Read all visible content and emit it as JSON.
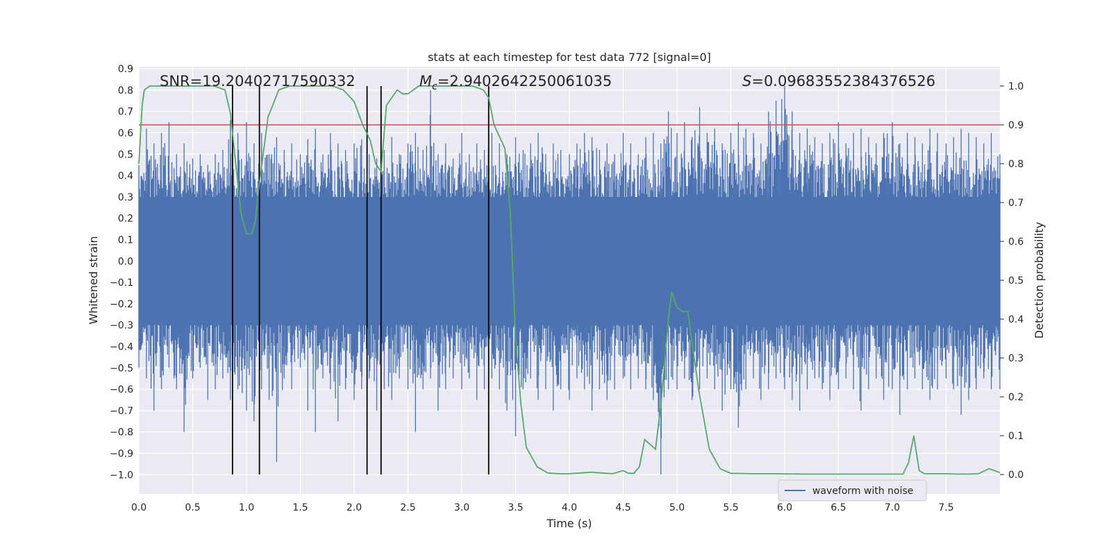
{
  "chart_data": {
    "type": "line",
    "title": "stats at each timestep for test data 772 [signal=0]",
    "xlabel": "Time (s)",
    "ylabel": "Whitened strain",
    "y2label": "Detection probability",
    "xlim": [
      0.0,
      8.0
    ],
    "ylim": [
      -1.09,
      0.91
    ],
    "y2lim": [
      -0.05,
      1.05
    ],
    "xticks": [
      "0.0",
      "0.5",
      "1.0",
      "1.5",
      "2.0",
      "2.5",
      "3.0",
      "3.5",
      "4.0",
      "4.5",
      "5.0",
      "5.5",
      "6.0",
      "6.5",
      "7.0",
      "7.5"
    ],
    "yticks": [
      "0.9",
      "0.8",
      "0.7",
      "0.6",
      "0.5",
      "0.4",
      "0.3",
      "0.2",
      "0.1",
      "0.0",
      "−0.1",
      "−0.2",
      "−0.3",
      "−0.4",
      "−0.5",
      "−0.6",
      "−0.7",
      "−0.8",
      "−0.9",
      "−1.0"
    ],
    "y2ticks": [
      "1.0",
      "0.9",
      "0.8",
      "0.7",
      "0.6",
      "0.5",
      "0.4",
      "0.3",
      "0.2",
      "0.1",
      "0.0"
    ],
    "grid": true,
    "legend_placement": "lower-right",
    "annotations": {
      "snr": "SNR=19.20402717590332",
      "mc_symbol": "M",
      "mc_sub": "c",
      "mc_value": "=2.9402642250061035",
      "s_symbol": "S",
      "s_value": "=0.09683552384376526"
    },
    "threshold": 0.9,
    "vertical_lines": [
      0.87,
      1.12,
      2.12,
      2.25,
      3.25
    ],
    "series": [
      {
        "name": "waveform with noise",
        "color": "#4c72b0",
        "envelope_x": [
          0.0,
          0.07,
          0.14,
          0.21,
          0.28,
          0.35,
          0.42,
          0.5,
          0.57,
          0.64,
          0.71,
          0.78,
          0.85,
          0.92,
          1.0,
          1.07,
          1.14,
          1.21,
          1.28,
          1.35,
          1.42,
          1.5,
          1.57,
          1.64,
          1.71,
          1.78,
          1.85,
          1.92,
          2.0,
          2.07,
          2.14,
          2.21,
          2.28,
          2.35,
          2.42,
          2.5,
          2.57,
          2.64,
          2.71,
          2.78,
          2.85,
          2.92,
          3.0,
          3.07,
          3.14,
          3.21,
          3.28,
          3.35,
          3.42,
          3.5,
          3.57,
          3.64,
          3.71,
          3.78,
          3.85,
          3.92,
          4.0,
          4.07,
          4.14,
          4.21,
          4.28,
          4.35,
          4.42,
          4.5,
          4.57,
          4.64,
          4.71,
          4.78,
          4.85,
          4.92,
          5.0,
          5.07,
          5.14,
          5.21,
          5.28,
          5.35,
          5.42,
          5.5,
          5.57,
          5.64,
          5.71,
          5.78,
          5.85,
          5.92,
          6.0,
          6.07,
          6.14,
          6.21,
          6.28,
          6.35,
          6.42,
          6.5,
          6.57,
          6.64,
          6.71,
          6.78,
          6.85,
          6.92,
          7.0,
          7.07,
          7.14,
          7.21,
          7.28,
          7.35,
          7.42,
          7.5,
          7.57,
          7.64,
          7.71,
          7.78,
          7.85,
          7.92,
          8.0
        ],
        "envelope_top": [
          0.45,
          0.62,
          0.55,
          0.6,
          0.65,
          0.5,
          0.55,
          0.48,
          0.5,
          0.45,
          0.5,
          0.52,
          0.66,
          0.6,
          0.65,
          0.55,
          0.6,
          0.5,
          0.58,
          0.52,
          0.55,
          0.5,
          0.57,
          0.62,
          0.5,
          0.6,
          0.55,
          0.52,
          0.55,
          0.57,
          0.5,
          0.48,
          0.52,
          0.58,
          0.5,
          0.55,
          0.6,
          0.52,
          0.8,
          0.5,
          0.55,
          0.48,
          0.6,
          0.5,
          0.55,
          0.52,
          0.6,
          0.55,
          0.5,
          0.58,
          0.52,
          0.55,
          0.6,
          0.5,
          0.55,
          0.52,
          0.5,
          0.55,
          0.6,
          0.58,
          0.52,
          0.55,
          0.5,
          0.6,
          0.55,
          0.5,
          0.58,
          0.6,
          0.55,
          0.7,
          0.6,
          0.65,
          0.58,
          0.72,
          0.6,
          0.62,
          0.55,
          0.6,
          0.65,
          0.62,
          0.6,
          0.55,
          0.7,
          0.75,
          0.82,
          0.7,
          0.6,
          0.62,
          0.58,
          0.55,
          0.6,
          0.65,
          0.55,
          0.6,
          0.62,
          0.58,
          0.55,
          0.6,
          0.65,
          0.55,
          0.6,
          0.58,
          0.55,
          0.62,
          0.6,
          0.55,
          0.58,
          0.62,
          0.6,
          0.58,
          0.55,
          0.6,
          0.5,
          0.5,
          0.47
        ],
        "envelope_bottom": [
          -0.5,
          -0.55,
          -0.7,
          -0.6,
          -0.5,
          -0.6,
          -0.8,
          -0.55,
          -0.5,
          -0.65,
          -0.6,
          -0.55,
          -0.65,
          -0.6,
          -0.7,
          -0.75,
          -0.6,
          -0.65,
          -0.94,
          -0.55,
          -0.6,
          -0.5,
          -0.7,
          -0.8,
          -0.55,
          -0.6,
          -0.75,
          -0.6,
          -0.65,
          -0.6,
          -0.55,
          -0.7,
          -0.6,
          -0.65,
          -0.55,
          -0.6,
          -0.8,
          -0.6,
          -0.55,
          -0.7,
          -0.6,
          -0.55,
          -0.6,
          -0.55,
          -0.65,
          -0.6,
          -0.55,
          -0.6,
          -0.7,
          -0.82,
          -0.6,
          -0.55,
          -0.65,
          -0.6,
          -0.7,
          -0.6,
          -0.65,
          -0.55,
          -0.6,
          -0.7,
          -0.6,
          -0.65,
          -0.6,
          -0.55,
          -0.6,
          -0.55,
          -0.6,
          -0.65,
          -1.0,
          -0.6,
          -0.6,
          -0.55,
          -0.65,
          -0.6,
          -0.55,
          -0.6,
          -0.7,
          -0.6,
          -0.78,
          -0.6,
          -0.55,
          -0.65,
          -0.6,
          -0.55,
          -0.6,
          -0.65,
          -0.7,
          -0.6,
          -0.55,
          -0.6,
          -0.65,
          -0.6,
          -0.55,
          -0.6,
          -0.7,
          -0.6,
          -0.55,
          -0.65,
          -0.6,
          -0.72,
          -0.6,
          -0.55,
          -0.6,
          -0.65,
          -0.6,
          -0.55,
          -0.6,
          -0.72,
          -0.65,
          -0.6,
          -0.55,
          -0.6,
          -0.6,
          -0.55,
          -0.5
        ]
      },
      {
        "name": "detection probability",
        "color": "#55a868",
        "axis": "right",
        "x": [
          0.0,
          0.03,
          0.05,
          0.1,
          0.15,
          0.2,
          0.3,
          0.45,
          0.6,
          0.7,
          0.8,
          0.85,
          0.9,
          0.95,
          1.0,
          1.05,
          1.08,
          1.12,
          1.2,
          1.3,
          1.4,
          1.5,
          1.6,
          1.7,
          1.8,
          1.9,
          2.0,
          2.08,
          2.15,
          2.2,
          2.25,
          2.3,
          2.4,
          2.45,
          2.5,
          2.55,
          2.6,
          2.7,
          2.8,
          2.9,
          3.0,
          3.1,
          3.2,
          3.25,
          3.3,
          3.4,
          3.45,
          3.5,
          3.55,
          3.6,
          3.7,
          3.8,
          3.9,
          4.0,
          4.1,
          4.2,
          4.3,
          4.4,
          4.5,
          4.55,
          4.6,
          4.65,
          4.7,
          4.8,
          4.85,
          4.92,
          4.95,
          5.0,
          5.05,
          5.1,
          5.2,
          5.3,
          5.4,
          5.5,
          5.7,
          5.9,
          6.2,
          6.5,
          6.8,
          7.0,
          7.1,
          7.15,
          7.2,
          7.25,
          7.3,
          7.4,
          7.5,
          7.6,
          7.7,
          7.8,
          7.9,
          8.0
        ],
        "y": [
          0.8,
          0.95,
          0.99,
          1.0,
          1.0,
          1.0,
          1.0,
          1.0,
          1.0,
          1.0,
          0.99,
          0.93,
          0.8,
          0.67,
          0.62,
          0.62,
          0.65,
          0.75,
          0.92,
          0.99,
          1.0,
          1.0,
          1.0,
          1.0,
          1.0,
          0.99,
          0.96,
          0.9,
          0.86,
          0.8,
          0.78,
          0.95,
          0.99,
          0.98,
          0.98,
          0.99,
          1.0,
          1.0,
          1.0,
          1.0,
          1.0,
          1.0,
          0.99,
          0.97,
          0.9,
          0.84,
          0.68,
          0.35,
          0.18,
          0.07,
          0.02,
          0.004,
          0.002,
          0.002,
          0.004,
          0.006,
          0.004,
          0.002,
          0.01,
          0.003,
          0.003,
          0.02,
          0.09,
          0.065,
          0.18,
          0.4,
          0.47,
          0.43,
          0.42,
          0.42,
          0.22,
          0.065,
          0.015,
          0.003,
          0.002,
          0.002,
          0.001,
          0.001,
          0.001,
          0.001,
          0.001,
          0.03,
          0.1,
          0.01,
          0.002,
          0.002,
          0.002,
          0.001,
          0.001,
          0.002,
          0.015,
          0.005
        ]
      }
    ]
  }
}
